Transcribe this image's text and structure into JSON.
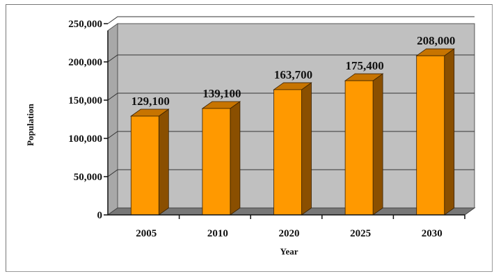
{
  "chart_data": {
    "type": "bar",
    "categories": [
      "2005",
      "2010",
      "2020",
      "2025",
      "2030"
    ],
    "values": [
      129100,
      139100,
      163700,
      175400,
      208000
    ],
    "data_labels": [
      "129,100",
      "139,100",
      "163,700",
      "175,400",
      "208,000"
    ],
    "title": "",
    "xlabel": "Year",
    "ylabel": "Population",
    "ylim": [
      0,
      250000
    ],
    "yticks": [
      0,
      50000,
      100000,
      150000,
      200000,
      250000
    ],
    "ytick_labels": [
      "0",
      "50,000",
      "100,000",
      "150,000",
      "200,000",
      "250,000"
    ],
    "grid": true,
    "legend": "none",
    "style": "3d-column"
  },
  "colors": {
    "bar_front": "#ff9900",
    "bar_side": "#8a4f00",
    "bar_top": "#c77400",
    "plot_wall": "#c0c0c0",
    "floor": "#777777",
    "gridline": "#333333"
  }
}
